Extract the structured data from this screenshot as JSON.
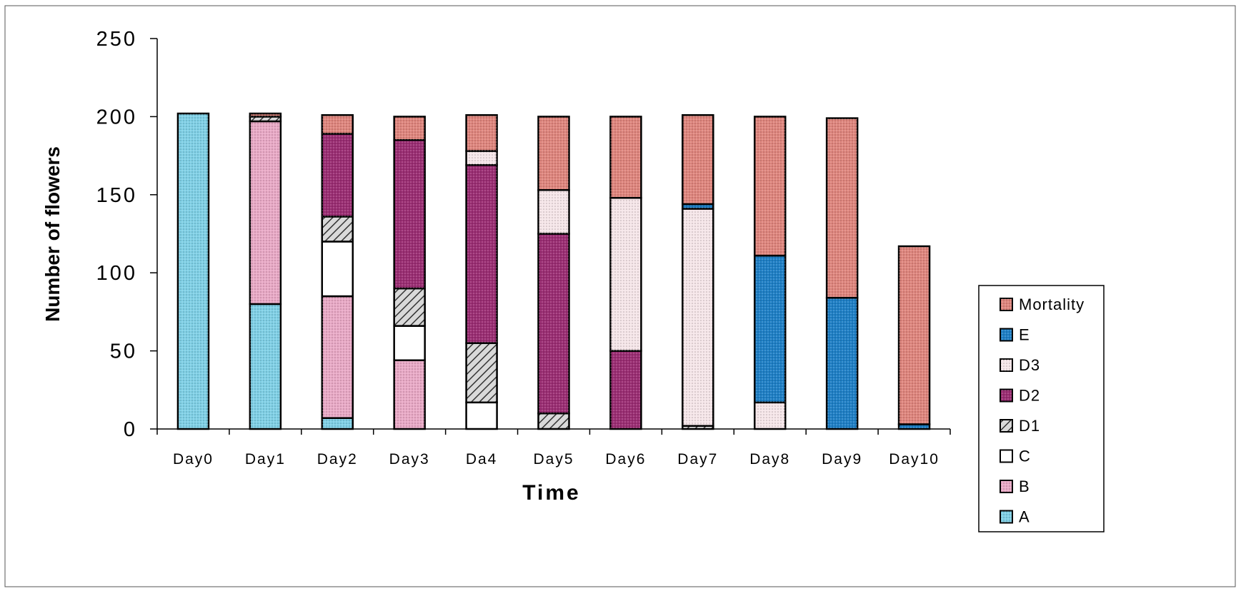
{
  "chart_data": {
    "type": "bar",
    "stacked": true,
    "title": "",
    "xlabel": "Time",
    "ylabel": "Number of flowers",
    "ylim": [
      0,
      250
    ],
    "yticks": [
      "0",
      "50",
      "100",
      "150",
      "200",
      "250"
    ],
    "grid": false,
    "legend_position": "right-bottom",
    "categories": [
      "Day0",
      "Day1",
      "Day2",
      "Day3",
      "Da4",
      "Day5",
      "Day6",
      "Day7",
      "Day8",
      "Day9",
      "Day10"
    ],
    "series": [
      {
        "name": "A",
        "color": "#7fd0e6",
        "values": [
          202,
          80,
          7,
          0,
          0,
          0,
          0,
          0,
          0,
          0,
          0
        ]
      },
      {
        "name": "B",
        "color": "#e9a9c6",
        "values": [
          0,
          117,
          78,
          44,
          0,
          0,
          0,
          0,
          0,
          0,
          0
        ]
      },
      {
        "name": "C",
        "color": "#ffffff",
        "values": [
          0,
          0,
          35,
          22,
          17,
          0,
          0,
          0,
          0,
          0,
          0
        ]
      },
      {
        "name": "D1",
        "color": "#8c8c8c",
        "values": [
          0,
          3,
          16,
          24,
          38,
          10,
          0,
          2,
          0,
          0,
          0
        ]
      },
      {
        "name": "D2",
        "color": "#9b2d73",
        "values": [
          0,
          0,
          53,
          95,
          114,
          115,
          50,
          0,
          0,
          0,
          0
        ]
      },
      {
        "name": "D3",
        "color": "#f6e6e9",
        "values": [
          0,
          0,
          0,
          0,
          9,
          28,
          98,
          139,
          17,
          0,
          0
        ]
      },
      {
        "name": "E",
        "color": "#1e7fc6",
        "values": [
          0,
          0,
          0,
          0,
          0,
          0,
          0,
          3,
          94,
          84,
          3
        ]
      },
      {
        "name": "Mortality",
        "color": "#df857d",
        "values": [
          0,
          2,
          12,
          15,
          23,
          47,
          52,
          57,
          89,
          115,
          114
        ]
      }
    ]
  }
}
